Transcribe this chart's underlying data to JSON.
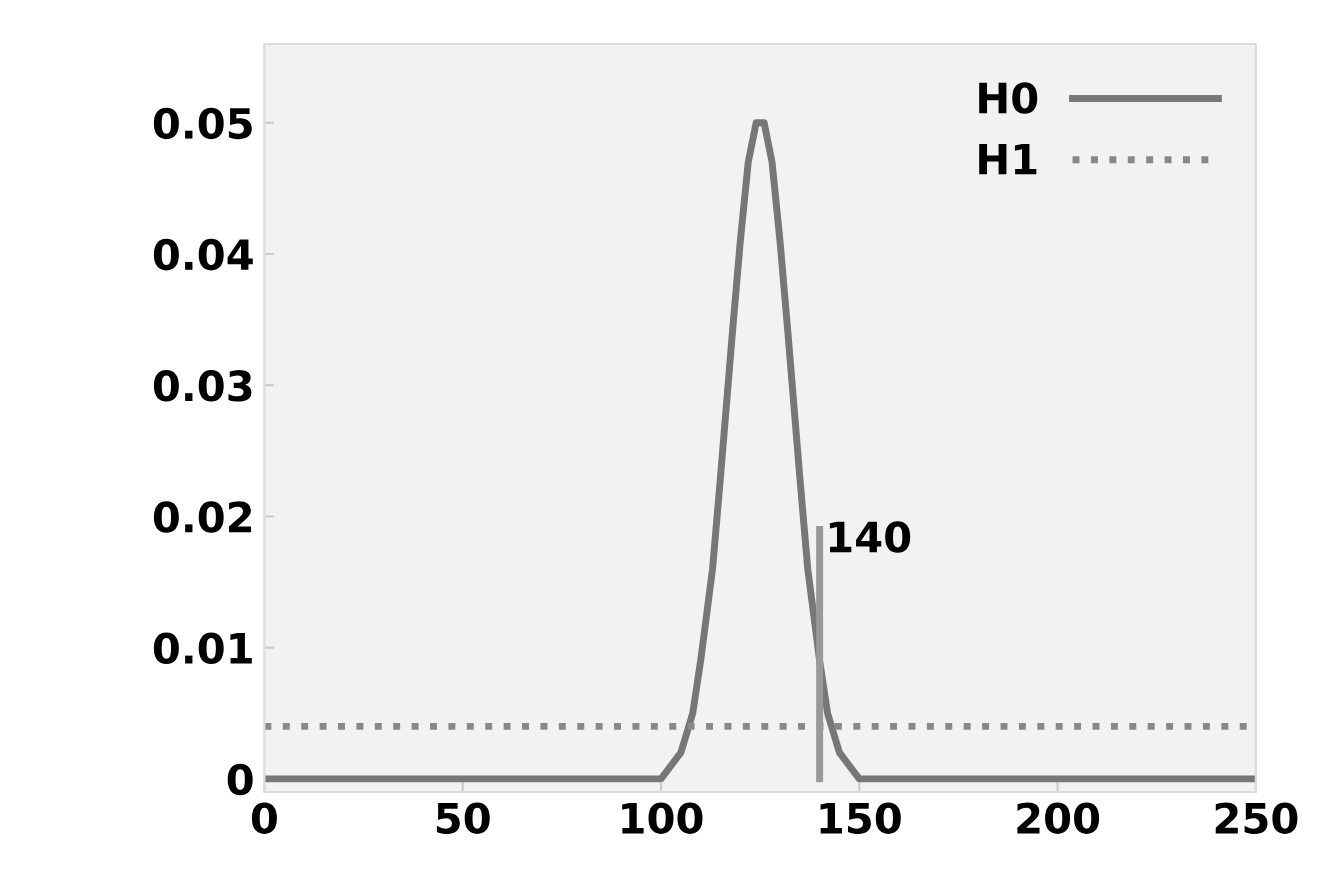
{
  "chart_data": {
    "type": "line",
    "series": [
      {
        "name": "H0",
        "color": "#777777",
        "line_style": "solid",
        "x": [
          0,
          95,
          100,
          105,
          108,
          110,
          113,
          115,
          118,
          120,
          122,
          124,
          125,
          126,
          128,
          130,
          132,
          135,
          137,
          140,
          142,
          145,
          150,
          155,
          250
        ],
        "values": [
          0,
          0,
          0,
          0.002,
          0.005,
          0.009,
          0.016,
          0.023,
          0.034,
          0.041,
          0.047,
          0.05,
          0.05,
          0.05,
          0.047,
          0.041,
          0.034,
          0.023,
          0.016,
          0.009,
          0.005,
          0.002,
          0,
          0,
          0
        ]
      },
      {
        "name": "H1",
        "color": "#888888",
        "line_style": "dotted",
        "x": [
          0,
          250
        ],
        "values": [
          0.004,
          0.004
        ]
      },
      {
        "color": "#999999",
        "line_style": "solid",
        "x": [
          140,
          140
        ],
        "values": [
          0,
          0.019
        ]
      }
    ],
    "annotations": [
      {
        "text": "140",
        "x": 140,
        "y": 0.019
      }
    ],
    "xlim": [
      0,
      250
    ],
    "ylim": [
      -0.001,
      0.056
    ],
    "xticks": [
      0,
      50,
      100,
      150,
      200,
      250
    ],
    "yticks": [
      0,
      0.01,
      0.02,
      0.03,
      0.04,
      0.05
    ],
    "legend": "top right",
    "grid": false
  }
}
